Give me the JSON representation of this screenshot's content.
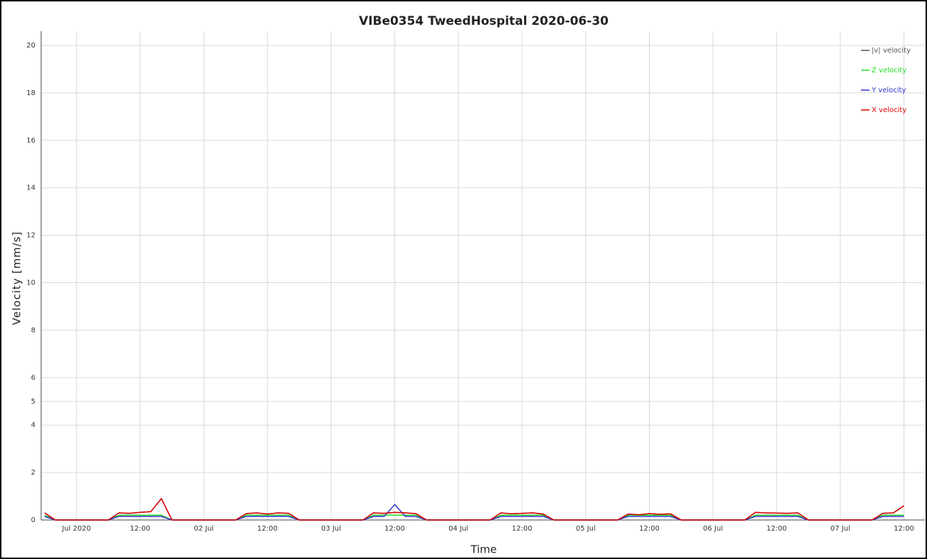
{
  "chart_data": {
    "type": "line",
    "title": "VIBe0354 TweedHospital 2020-06-30",
    "x_label": "Time",
    "y_label": "Velocity [mm/s]",
    "x": [
      "2020-06-30 18:00",
      "2020-06-30 20:00",
      "2020-06-30 22:00",
      "2020-07-01 00:00",
      "2020-07-01 02:00",
      "2020-07-01 04:00",
      "2020-07-01 06:00",
      "2020-07-01 08:00",
      "2020-07-01 10:00",
      "2020-07-01 12:00",
      "2020-07-01 14:00",
      "2020-07-01 16:00",
      "2020-07-01 18:00",
      "2020-07-01 20:00",
      "2020-07-01 22:00",
      "2020-07-02 00:00",
      "2020-07-02 02:00",
      "2020-07-02 04:00",
      "2020-07-02 06:00",
      "2020-07-02 08:00",
      "2020-07-02 10:00",
      "2020-07-02 12:00",
      "2020-07-02 14:00",
      "2020-07-02 16:00",
      "2020-07-02 18:00",
      "2020-07-02 20:00",
      "2020-07-02 22:00",
      "2020-07-03 00:00",
      "2020-07-03 02:00",
      "2020-07-03 04:00",
      "2020-07-03 06:00",
      "2020-07-03 08:00",
      "2020-07-03 10:00",
      "2020-07-03 12:00",
      "2020-07-03 14:00",
      "2020-07-03 16:00",
      "2020-07-03 18:00",
      "2020-07-03 20:00",
      "2020-07-03 22:00",
      "2020-07-04 00:00",
      "2020-07-04 02:00",
      "2020-07-04 04:00",
      "2020-07-04 06:00",
      "2020-07-04 08:00",
      "2020-07-04 10:00",
      "2020-07-04 12:00",
      "2020-07-04 14:00",
      "2020-07-04 16:00",
      "2020-07-04 18:00",
      "2020-07-04 20:00",
      "2020-07-04 22:00",
      "2020-07-05 00:00",
      "2020-07-05 02:00",
      "2020-07-05 04:00",
      "2020-07-05 06:00",
      "2020-07-05 08:00",
      "2020-07-05 10:00",
      "2020-07-05 12:00",
      "2020-07-05 14:00",
      "2020-07-05 16:00",
      "2020-07-05 18:00",
      "2020-07-05 20:00",
      "2020-07-05 22:00",
      "2020-07-06 00:00",
      "2020-07-06 02:00",
      "2020-07-06 04:00",
      "2020-07-06 06:00",
      "2020-07-06 08:00",
      "2020-07-06 10:00",
      "2020-07-06 12:00",
      "2020-07-06 14:00",
      "2020-07-06 16:00",
      "2020-07-06 18:00",
      "2020-07-06 20:00",
      "2020-07-06 22:00",
      "2020-07-07 00:00",
      "2020-07-07 02:00",
      "2020-07-07 04:00",
      "2020-07-07 06:00",
      "2020-07-07 08:00",
      "2020-07-07 10:00",
      "2020-07-07 12:00"
    ],
    "series": [
      {
        "name": "|v| velocity",
        "color": "#555555",
        "values": [
          0.3,
          0,
          0,
          0,
          0,
          0,
          0,
          0.3,
          0.28,
          0.32,
          0.35,
          0.9,
          0,
          0,
          0,
          0,
          0,
          0,
          0,
          0.27,
          0.3,
          0.25,
          0.3,
          0.28,
          0,
          0,
          0,
          0,
          0,
          0,
          0,
          0.3,
          0.28,
          0.32,
          0.3,
          0.27,
          0,
          0,
          0,
          0,
          0,
          0,
          0,
          0.3,
          0.26,
          0.28,
          0.3,
          0.25,
          0,
          0,
          0,
          0,
          0,
          0,
          0,
          0.25,
          0.22,
          0.27,
          0.24,
          0.26,
          0,
          0,
          0,
          0,
          0,
          0,
          0,
          0.32,
          0.3,
          0.29,
          0.28,
          0.3,
          0,
          0,
          0,
          0,
          0,
          0,
          0,
          0.28,
          0.3,
          0.6
        ]
      },
      {
        "name": "Z velocity",
        "color": "#22dd22",
        "values": [
          0.2,
          0,
          0,
          0,
          0,
          0,
          0,
          0.2,
          0.2,
          0.2,
          0.2,
          0.2,
          0,
          0,
          0,
          0,
          0,
          0,
          0,
          0.2,
          0.2,
          0.2,
          0.2,
          0.2,
          0,
          0,
          0,
          0,
          0,
          0,
          0,
          0.2,
          0.2,
          0.2,
          0.2,
          0.2,
          0,
          0,
          0,
          0,
          0,
          0,
          0,
          0.2,
          0.2,
          0.2,
          0.2,
          0.2,
          0,
          0,
          0,
          0,
          0,
          0,
          0,
          0.2,
          0.2,
          0.2,
          0.2,
          0.2,
          0,
          0,
          0,
          0,
          0,
          0,
          0,
          0.2,
          0.2,
          0.2,
          0.2,
          0.2,
          0,
          0,
          0,
          0,
          0,
          0,
          0,
          0.2,
          0.2,
          0.2
        ]
      },
      {
        "name": "Y velocity",
        "color": "#3333cc",
        "values": [
          0.15,
          0,
          0,
          0,
          0,
          0,
          0,
          0.15,
          0.15,
          0.15,
          0.15,
          0.15,
          0,
          0,
          0,
          0,
          0,
          0,
          0,
          0.15,
          0.15,
          0.15,
          0.15,
          0.15,
          0,
          0,
          0,
          0,
          0,
          0,
          0,
          0.15,
          0.15,
          0.65,
          0.15,
          0.15,
          0,
          0,
          0,
          0,
          0,
          0,
          0,
          0.15,
          0.15,
          0.15,
          0.15,
          0.15,
          0,
          0,
          0,
          0,
          0,
          0,
          0,
          0.15,
          0.15,
          0.15,
          0.15,
          0.15,
          0,
          0,
          0,
          0,
          0,
          0,
          0,
          0.15,
          0.15,
          0.15,
          0.15,
          0.15,
          0,
          0,
          0,
          0,
          0,
          0,
          0,
          0.15,
          0.15,
          0.15
        ]
      },
      {
        "name": "X velocity",
        "color": "#e00000",
        "values": [
          0.3,
          0,
          0,
          0,
          0,
          0,
          0,
          0.3,
          0.28,
          0.32,
          0.35,
          0.9,
          0,
          0,
          0,
          0,
          0,
          0,
          0,
          0.27,
          0.3,
          0.25,
          0.3,
          0.28,
          0,
          0,
          0,
          0,
          0,
          0,
          0,
          0.3,
          0.28,
          0.32,
          0.3,
          0.27,
          0,
          0,
          0,
          0,
          0,
          0,
          0,
          0.3,
          0.26,
          0.28,
          0.3,
          0.25,
          0,
          0,
          0,
          0,
          0,
          0,
          0,
          0.25,
          0.22,
          0.27,
          0.24,
          0.26,
          0,
          0,
          0,
          0,
          0,
          0,
          0,
          0.32,
          0.3,
          0.29,
          0.28,
          0.3,
          0,
          0,
          0,
          0,
          0,
          0,
          0,
          0.28,
          0.3,
          0.6
        ]
      }
    ],
    "xlim": [
      "2020-06-30 17:20",
      "2020-07-07 12:20"
    ],
    "xticks": [
      {
        "value": "2020-07-01 00:00",
        "label": "Jul 2020"
      },
      {
        "value": "2020-07-01 12:00",
        "label": "12:00"
      },
      {
        "value": "2020-07-02 00:00",
        "label": "02 Jul"
      },
      {
        "value": "2020-07-02 12:00",
        "label": "12:00"
      },
      {
        "value": "2020-07-03 00:00",
        "label": "03 Jul"
      },
      {
        "value": "2020-07-03 12:00",
        "label": "12:00"
      },
      {
        "value": "2020-07-04 00:00",
        "label": "04 Jul"
      },
      {
        "value": "2020-07-04 12:00",
        "label": "12:00"
      },
      {
        "value": "2020-07-05 00:00",
        "label": "05 Jul"
      },
      {
        "value": "2020-07-05 12:00",
        "label": "12:00"
      },
      {
        "value": "2020-07-06 00:00",
        "label": "06 Jul"
      },
      {
        "value": "2020-07-06 12:00",
        "label": "12:00"
      },
      {
        "value": "2020-07-07 00:00",
        "label": "07 Jul"
      },
      {
        "value": "2020-07-07 12:00",
        "label": "12:00"
      }
    ],
    "ylim": [
      0,
      20
    ],
    "yticks": [
      0,
      2,
      4,
      5,
      6,
      8,
      10,
      12,
      14,
      16,
      18,
      20
    ],
    "grid": true,
    "legend": "top-right"
  }
}
